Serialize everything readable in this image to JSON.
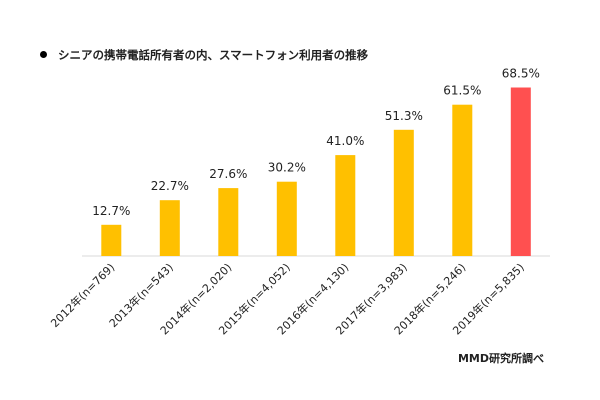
{
  "chart_data": {
    "type": "bar",
    "title": "シニアの携帯電話所有者の内、スマートフォン利用者の推移",
    "categories": [
      "2012年(n=769)",
      "2013年(n=543)",
      "2014年(n=2,020)",
      "2015年(n=4,052)",
      "2016年(n=4,130)",
      "2017年(n=3,983)",
      "2018年(n=5,246)",
      "2019年(n=5,835)"
    ],
    "values": [
      12.7,
      22.7,
      27.6,
      30.2,
      41.0,
      51.3,
      61.5,
      68.5
    ],
    "data_labels": [
      "12.7%",
      "22.7%",
      "27.6%",
      "30.2%",
      "41.0%",
      "51.3%",
      "61.5%",
      "68.5%"
    ],
    "ylim": [
      0,
      100
    ],
    "grid": false,
    "legend": "none",
    "highlight_index": 7,
    "colors": {
      "bar": "#FFC000",
      "highlight": "#FF5050",
      "axis": "#D9D9D9",
      "text": "#222222"
    }
  },
  "source": "MMD研究所調べ"
}
